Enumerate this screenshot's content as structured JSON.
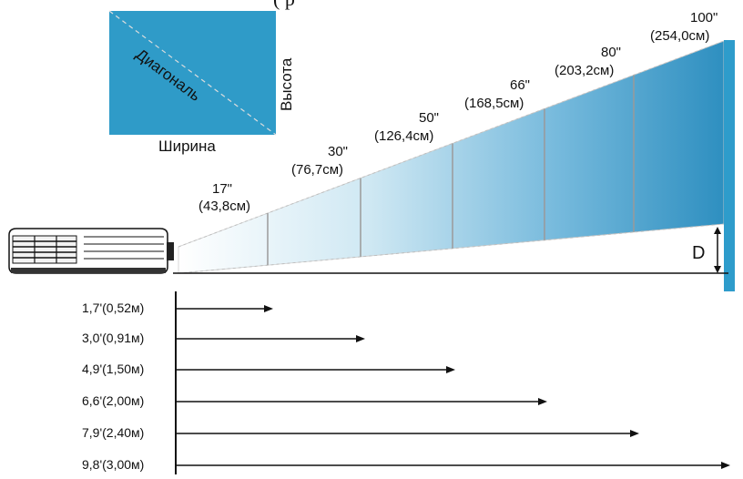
{
  "header_fragment": "(                              р",
  "inset": {
    "diagonal_label": "Диагональ",
    "height_label": "Высота",
    "width_label": "Ширина",
    "fill_color": "#2f9bc8",
    "line_color": "#dddddd"
  },
  "screens": [
    {
      "inch": "17\"",
      "cm": "(43,8см)"
    },
    {
      "inch": "30\"",
      "cm": "(76,7см)"
    },
    {
      "inch": "50\"",
      "cm": "(126,4см)"
    },
    {
      "inch": "66\"",
      "cm": "(168,5см)"
    },
    {
      "inch": "80\"",
      "cm": "(203,2см)"
    },
    {
      "inch": "100\"",
      "cm": "(254,0см)"
    }
  ],
  "offset_label": "D",
  "distances": [
    "1,7'(0,52м)",
    "3,0'(0,91м)",
    "4,9'(1,50м)",
    "6,6'(2,00м)",
    "7,9'(2,40м)",
    "9,8'(3,00м)"
  ],
  "colors": {
    "wall": "#2e9ccb",
    "beam_far": "#2e8fc0",
    "beam_near": "#ffffff",
    "arrow": "#111111"
  },
  "icons": {
    "projector": "projector-icon",
    "wall": "screen-wall-icon"
  }
}
